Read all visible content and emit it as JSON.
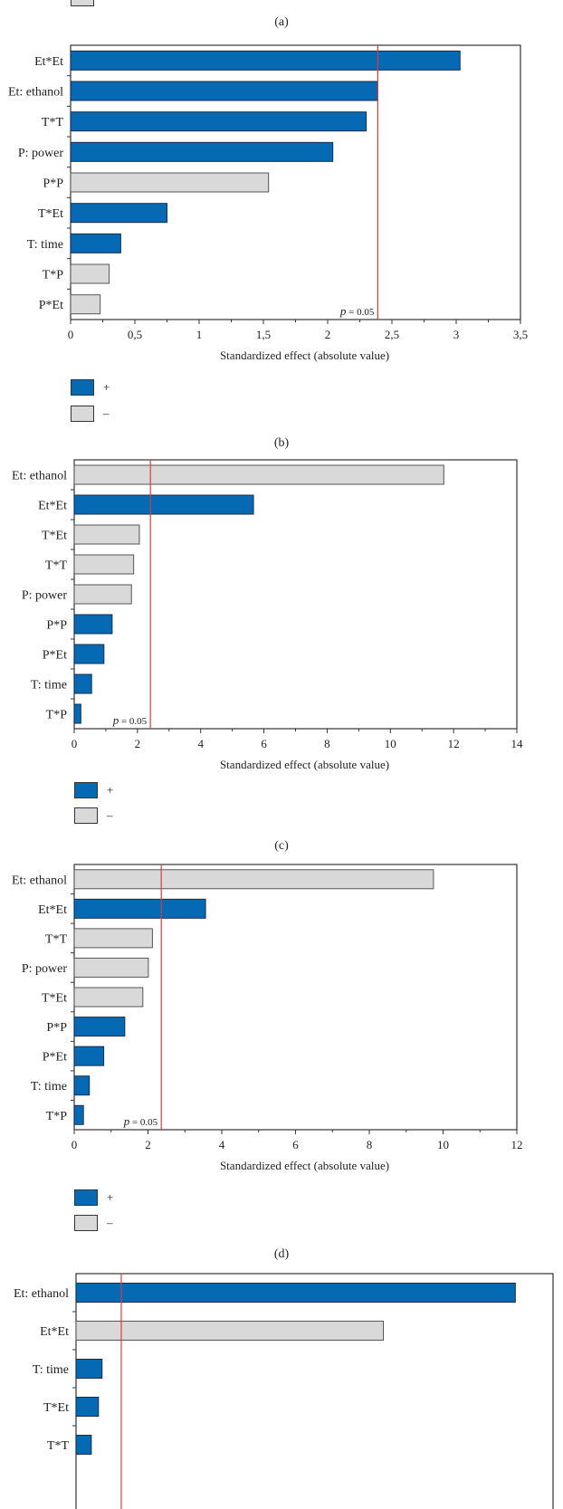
{
  "colors": {
    "positive": "#0569b3",
    "negative": "#d9d9d9",
    "threshold": "#e53935"
  },
  "legend": {
    "positive_label": "+",
    "negative_label": "–"
  },
  "captions": [
    "(a)",
    "(b)",
    "(c)",
    "(d)"
  ],
  "chart_data": [
    {
      "type": "bar",
      "orientation": "horizontal",
      "xlabel": "Standardized effect (absolute value)",
      "xlim": [
        0,
        3.5
      ],
      "ticks": [
        0,
        0.5,
        1,
        1.5,
        2,
        2.5,
        3,
        3.5
      ],
      "tick_labels": [
        "0",
        "0,5",
        "1",
        "1,5",
        "2",
        "2,5",
        "3",
        "3,5"
      ],
      "threshold": {
        "label_p": "p",
        "label_rest": " = 0.05",
        "value": 2.39
      },
      "categories": [
        "Et*Et",
        "Et: ethanol",
        "T*T",
        "P: power",
        "P*P",
        "T*Et",
        "T: time",
        "T*P",
        "P*Et"
      ],
      "values": [
        3.03,
        2.39,
        2.3,
        2.04,
        1.54,
        0.75,
        0.39,
        0.3,
        0.23
      ],
      "signs": [
        "+",
        "+",
        "+",
        "+",
        "-",
        "+",
        "+",
        "-",
        "-"
      ],
      "legend": "bottom-left"
    },
    {
      "type": "bar",
      "orientation": "horizontal",
      "xlabel": "Standardized effect (absolute value)",
      "xlim": [
        0,
        14
      ],
      "ticks": [
        0,
        2,
        4,
        6,
        8,
        10,
        12,
        14
      ],
      "tick_labels": [
        "0",
        "2",
        "4",
        "6",
        "8",
        "10",
        "12",
        "14"
      ],
      "threshold": {
        "label_p": "p",
        "label_rest": " = 0.05",
        "value": 2.41
      },
      "categories": [
        "Et: ethanol",
        "Et*Et",
        "T*Et",
        "T*T",
        "P: power",
        "P*P",
        "P*Et",
        "T: time",
        "T*P"
      ],
      "values": [
        11.69,
        5.67,
        2.06,
        1.88,
        1.81,
        1.2,
        0.94,
        0.55,
        0.21
      ],
      "signs": [
        "-",
        "+",
        "-",
        "-",
        "-",
        "+",
        "+",
        "+",
        "+"
      ],
      "legend": "bottom-left"
    },
    {
      "type": "bar",
      "orientation": "horizontal",
      "xlabel": "Standardized effect (absolute value)",
      "xlim": [
        0,
        12
      ],
      "ticks": [
        0,
        2,
        4,
        6,
        8,
        10,
        12
      ],
      "tick_labels": [
        "0",
        "2",
        "4",
        "6",
        "8",
        "10",
        "12"
      ],
      "threshold": {
        "label_p": "p",
        "label_rest": " = 0.05",
        "value": 2.36
      },
      "categories": [
        "Et: ethanol",
        "Et*Et",
        "T*T",
        "P: power",
        "T*Et",
        "P*P",
        "P*Et",
        "T: time",
        "T*P"
      ],
      "values": [
        9.74,
        3.56,
        2.12,
        2.01,
        1.86,
        1.37,
        0.8,
        0.41,
        0.25
      ],
      "signs": [
        "-",
        "+",
        "-",
        "-",
        "-",
        "+",
        "+",
        "+",
        "+"
      ],
      "legend": "bottom-left"
    },
    {
      "type": "bar",
      "orientation": "horizontal",
      "threshold": {
        "value": 2.4
      },
      "categories": [
        "Et: ethanol",
        "Et*Et",
        "T: time",
        "T*Et",
        "T*T"
      ],
      "values": [
        23.3,
        16.3,
        1.38,
        1.19,
        0.81
      ],
      "signs": [
        "+",
        "-",
        "+",
        "+",
        "+"
      ]
    }
  ]
}
